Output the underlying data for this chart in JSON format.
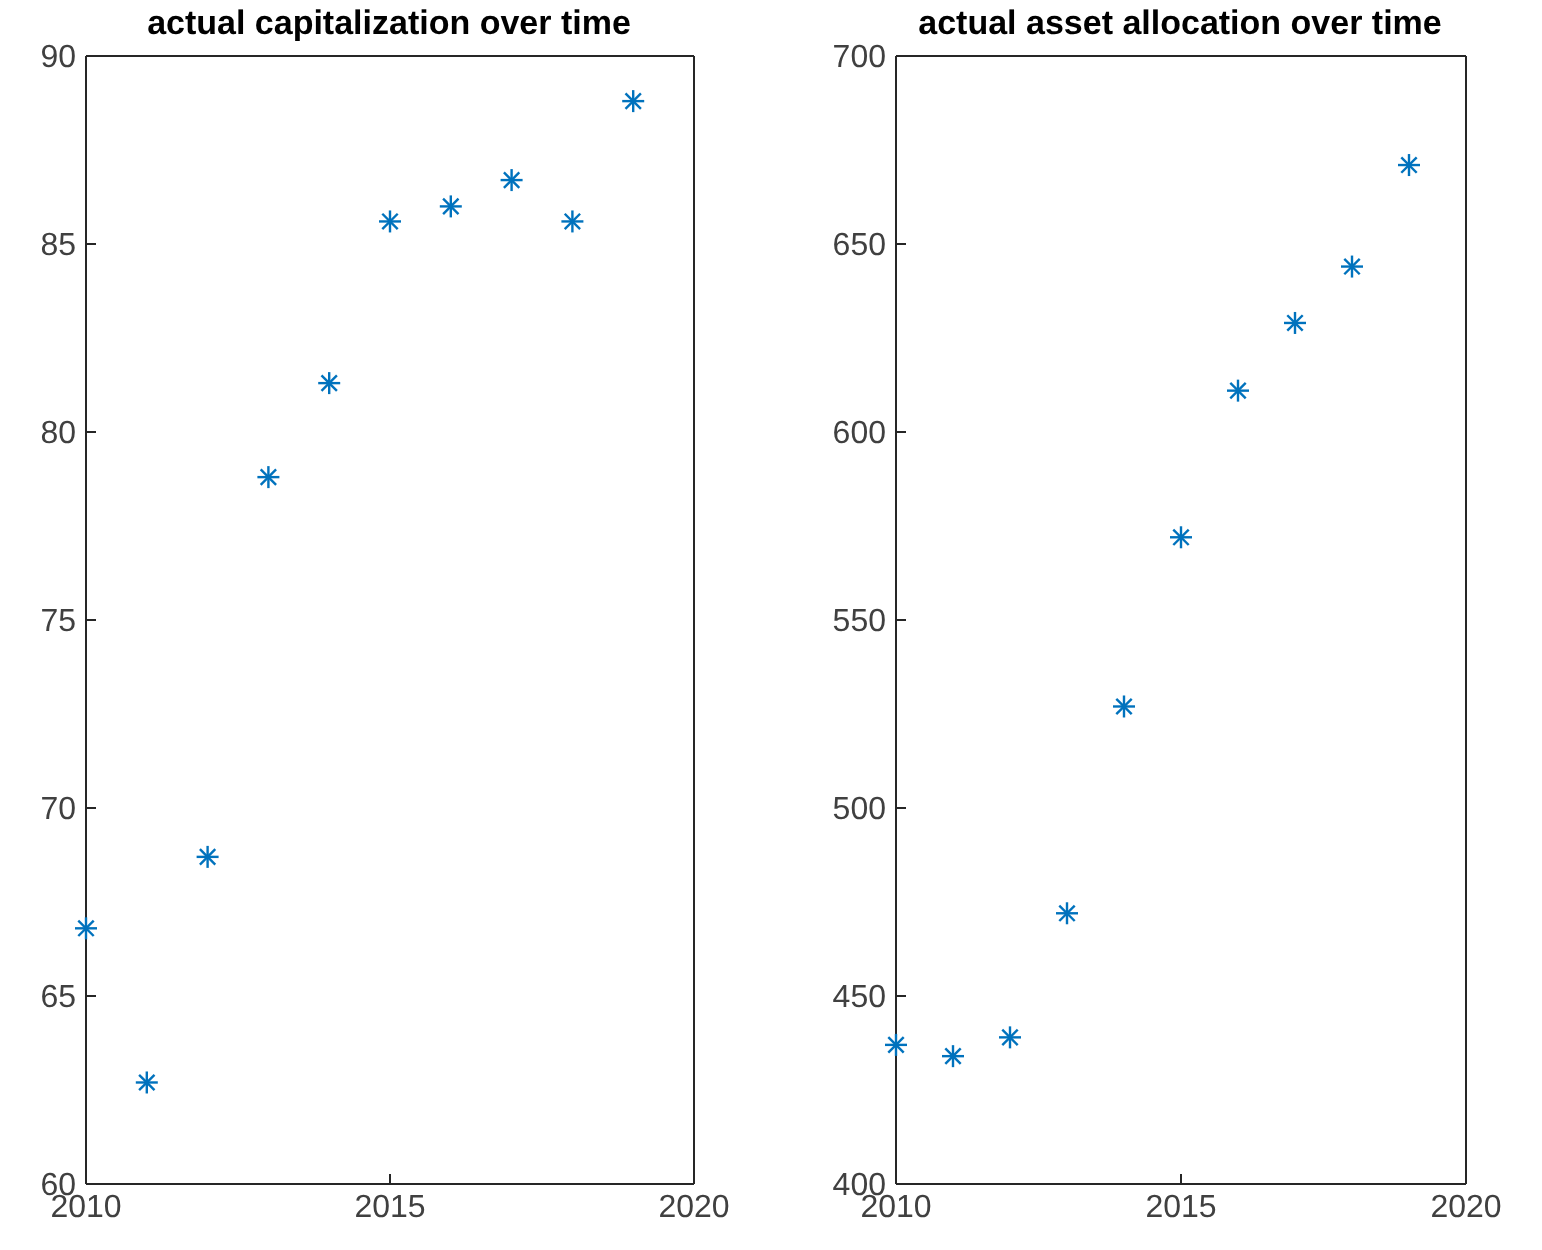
{
  "chart_data": [
    {
      "type": "scatter",
      "title": "actual capitalization over time",
      "x": [
        2010,
        2011,
        2012,
        2013,
        2014,
        2015,
        2016,
        2017,
        2018,
        2019
      ],
      "values": [
        66.8,
        62.7,
        68.7,
        78.8,
        81.3,
        85.6,
        86.0,
        86.7,
        85.6,
        88.8
      ],
      "color": "#0072bd",
      "marker": "cross",
      "xlim": [
        2010,
        2020
      ],
      "xticks": [
        2010,
        2015,
        2020
      ],
      "ylim": [
        60,
        90
      ],
      "yticks": [
        60,
        65,
        70,
        75,
        80,
        85,
        90
      ]
    },
    {
      "type": "scatter",
      "title": "actual asset allocation over time",
      "x": [
        2010,
        2011,
        2012,
        2013,
        2014,
        2015,
        2016,
        2017,
        2018,
        2019
      ],
      "values": [
        437,
        434,
        439,
        472,
        527,
        572,
        611,
        629,
        644,
        671
      ],
      "color": "#0072bd",
      "marker": "cross",
      "xlim": [
        2010,
        2020
      ],
      "xticks": [
        2010,
        2015,
        2020
      ],
      "ylim": [
        400,
        700
      ],
      "yticks": [
        400,
        450,
        500,
        550,
        600,
        650,
        700
      ]
    }
  ]
}
